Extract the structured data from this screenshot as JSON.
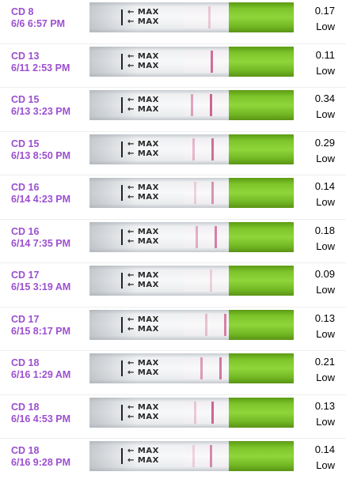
{
  "tests": [
    {
      "cd": "CD 8",
      "datetime": "6/6 6:57 PM",
      "value": "0.17",
      "level": "Low"
    },
    {
      "cd": "CD 13",
      "datetime": "6/11 2:53 PM",
      "value": "0.11",
      "level": "Low"
    },
    {
      "cd": "CD 15",
      "datetime": "6/13 3:23 PM",
      "value": "0.34",
      "level": "Low"
    },
    {
      "cd": "CD 15",
      "datetime": "6/13 8:50 PM",
      "value": "0.29",
      "level": "Low"
    },
    {
      "cd": "CD 16",
      "datetime": "6/14 4:23 PM",
      "value": "0.14",
      "level": "Low"
    },
    {
      "cd": "CD 16",
      "datetime": "6/14 7:35 PM",
      "value": "0.18",
      "level": "Low"
    },
    {
      "cd": "CD 17",
      "datetime": "6/15 3:19 AM",
      "value": "0.09",
      "level": "Low"
    },
    {
      "cd": "CD 17",
      "datetime": "6/15 8:17 PM",
      "value": "0.13",
      "level": "Low"
    },
    {
      "cd": "CD 18",
      "datetime": "6/16 1:29 AM",
      "value": "0.21",
      "level": "Low"
    },
    {
      "cd": "CD 18",
      "datetime": "6/16 4:53 PM",
      "value": "0.13",
      "level": "Low"
    },
    {
      "cd": "CD 18",
      "datetime": "6/16 9:28 PM",
      "value": "0.14",
      "level": "Low"
    }
  ],
  "strip": {
    "max_label": "MAX"
  },
  "colors": {
    "label": "#9c4fcf",
    "test_line": "#c2417a",
    "handle_green": "#7cc42a"
  }
}
